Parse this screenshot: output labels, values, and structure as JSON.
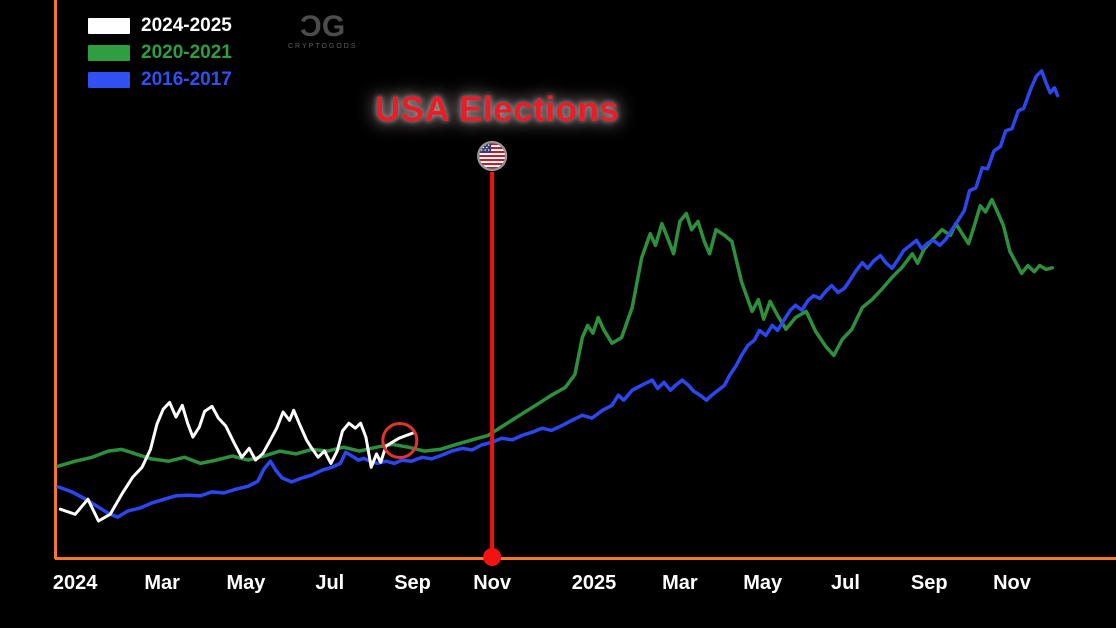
{
  "logo": {
    "mark_left": "C",
    "mark_right": "G",
    "subtext": "CRYPTOGODS"
  },
  "legend": {
    "items": [
      {
        "label": "2024-2025",
        "color": "#ffffff"
      },
      {
        "label": "2020-2021",
        "color": "#2f9e41"
      },
      {
        "label": "2016-2017",
        "color": "#3150f0"
      }
    ]
  },
  "chart_data": {
    "type": "line",
    "title": "USA Elections",
    "title_color": "#ea1c28",
    "background": "#000000",
    "axis_color": "#f4772e",
    "grid": false,
    "legend_position": "top-left",
    "y_axis": {
      "labels_visible": false,
      "unit": "relative price (axis unlabeled)"
    },
    "x_axis": {
      "ticks": [
        {
          "label": "2024",
          "x": 0.019
        },
        {
          "label": "Mar",
          "x": 0.101
        },
        {
          "label": "May",
          "x": 0.18
        },
        {
          "label": "Jul",
          "x": 0.259
        },
        {
          "label": "Sep",
          "x": 0.337
        },
        {
          "label": "Nov",
          "x": 0.412
        },
        {
          "label": "2025",
          "x": 0.508
        },
        {
          "label": "Mar",
          "x": 0.589
        },
        {
          "label": "May",
          "x": 0.667
        },
        {
          "label": "Jul",
          "x": 0.745
        },
        {
          "label": "Sep",
          "x": 0.824
        },
        {
          "label": "Nov",
          "x": 0.902
        }
      ]
    },
    "election_marker": {
      "label": "USA Elections",
      "x": 0.412,
      "color": "#f31212",
      "flag": "usa-flag-icon"
    },
    "highlight_circle": {
      "x": 0.325,
      "y": 0.212,
      "radius": 17,
      "color": "#e23333"
    },
    "series": [
      {
        "name": "2020-2021",
        "color": "#2e8f3d",
        "width": 3.5,
        "points": [
          [
            0.003,
            0.166
          ],
          [
            0.019,
            0.175
          ],
          [
            0.035,
            0.182
          ],
          [
            0.05,
            0.193
          ],
          [
            0.063,
            0.196
          ],
          [
            0.076,
            0.188
          ],
          [
            0.091,
            0.179
          ],
          [
            0.107,
            0.175
          ],
          [
            0.122,
            0.182
          ],
          [
            0.137,
            0.171
          ],
          [
            0.152,
            0.177
          ],
          [
            0.167,
            0.184
          ],
          [
            0.182,
            0.177
          ],
          [
            0.197,
            0.184
          ],
          [
            0.212,
            0.193
          ],
          [
            0.227,
            0.188
          ],
          [
            0.242,
            0.196
          ],
          [
            0.257,
            0.193
          ],
          [
            0.272,
            0.2
          ],
          [
            0.287,
            0.193
          ],
          [
            0.303,
            0.2
          ],
          [
            0.318,
            0.205
          ],
          [
            0.333,
            0.2
          ],
          [
            0.348,
            0.193
          ],
          [
            0.363,
            0.196
          ],
          [
            0.378,
            0.205
          ],
          [
            0.393,
            0.213
          ],
          [
            0.408,
            0.221
          ],
          [
            0.423,
            0.239
          ],
          [
            0.438,
            0.257
          ],
          [
            0.453,
            0.275
          ],
          [
            0.468,
            0.293
          ],
          [
            0.481,
            0.307
          ],
          [
            0.49,
            0.33
          ],
          [
            0.497,
            0.396
          ],
          [
            0.502,
            0.418
          ],
          [
            0.507,
            0.404
          ],
          [
            0.512,
            0.432
          ],
          [
            0.517,
            0.411
          ],
          [
            0.525,
            0.386
          ],
          [
            0.534,
            0.396
          ],
          [
            0.544,
            0.45
          ],
          [
            0.553,
            0.539
          ],
          [
            0.561,
            0.582
          ],
          [
            0.566,
            0.561
          ],
          [
            0.572,
            0.6
          ],
          [
            0.578,
            0.571
          ],
          [
            0.583,
            0.546
          ],
          [
            0.589,
            0.604
          ],
          [
            0.595,
            0.618
          ],
          [
            0.6,
            0.589
          ],
          [
            0.606,
            0.604
          ],
          [
            0.612,
            0.568
          ],
          [
            0.617,
            0.546
          ],
          [
            0.623,
            0.589
          ],
          [
            0.631,
            0.579
          ],
          [
            0.638,
            0.568
          ],
          [
            0.647,
            0.496
          ],
          [
            0.657,
            0.443
          ],
          [
            0.663,
            0.464
          ],
          [
            0.668,
            0.429
          ],
          [
            0.674,
            0.461
          ],
          [
            0.681,
            0.436
          ],
          [
            0.689,
            0.411
          ],
          [
            0.698,
            0.432
          ],
          [
            0.708,
            0.443
          ],
          [
            0.717,
            0.407
          ],
          [
            0.727,
            0.379
          ],
          [
            0.734,
            0.364
          ],
          [
            0.742,
            0.393
          ],
          [
            0.751,
            0.411
          ],
          [
            0.761,
            0.45
          ],
          [
            0.77,
            0.464
          ],
          [
            0.779,
            0.482
          ],
          [
            0.789,
            0.504
          ],
          [
            0.798,
            0.521
          ],
          [
            0.808,
            0.546
          ],
          [
            0.813,
            0.529
          ],
          [
            0.819,
            0.554
          ],
          [
            0.827,
            0.571
          ],
          [
            0.836,
            0.589
          ],
          [
            0.844,
            0.579
          ],
          [
            0.849,
            0.6
          ],
          [
            0.855,
            0.582
          ],
          [
            0.861,
            0.564
          ],
          [
            0.866,
            0.593
          ],
          [
            0.872,
            0.632
          ],
          [
            0.877,
            0.621
          ],
          [
            0.883,
            0.643
          ],
          [
            0.889,
            0.618
          ],
          [
            0.894,
            0.596
          ],
          [
            0.9,
            0.55
          ],
          [
            0.906,
            0.529
          ],
          [
            0.911,
            0.511
          ],
          [
            0.917,
            0.525
          ],
          [
            0.923,
            0.514
          ],
          [
            0.928,
            0.525
          ],
          [
            0.934,
            0.518
          ],
          [
            0.94,
            0.521
          ]
        ]
      },
      {
        "name": "2016-2017",
        "color": "#2c47f0",
        "width": 3.5,
        "points": [
          [
            0.003,
            0.129
          ],
          [
            0.016,
            0.12
          ],
          [
            0.027,
            0.109
          ],
          [
            0.039,
            0.095
          ],
          [
            0.05,
            0.082
          ],
          [
            0.059,
            0.075
          ],
          [
            0.069,
            0.086
          ],
          [
            0.08,
            0.091
          ],
          [
            0.091,
            0.1
          ],
          [
            0.103,
            0.107
          ],
          [
            0.114,
            0.113
          ],
          [
            0.125,
            0.114
          ],
          [
            0.137,
            0.113
          ],
          [
            0.148,
            0.12
          ],
          [
            0.159,
            0.118
          ],
          [
            0.171,
            0.125
          ],
          [
            0.182,
            0.13
          ],
          [
            0.191,
            0.139
          ],
          [
            0.197,
            0.161
          ],
          [
            0.203,
            0.175
          ],
          [
            0.208,
            0.159
          ],
          [
            0.214,
            0.145
          ],
          [
            0.223,
            0.138
          ],
          [
            0.233,
            0.145
          ],
          [
            0.242,
            0.15
          ],
          [
            0.252,
            0.159
          ],
          [
            0.261,
            0.164
          ],
          [
            0.269,
            0.171
          ],
          [
            0.274,
            0.191
          ],
          [
            0.28,
            0.184
          ],
          [
            0.286,
            0.177
          ],
          [
            0.291,
            0.18
          ],
          [
            0.297,
            0.175
          ],
          [
            0.304,
            0.171
          ],
          [
            0.312,
            0.175
          ],
          [
            0.32,
            0.171
          ],
          [
            0.327,
            0.177
          ],
          [
            0.336,
            0.175
          ],
          [
            0.346,
            0.182
          ],
          [
            0.355,
            0.179
          ],
          [
            0.365,
            0.186
          ],
          [
            0.374,
            0.193
          ],
          [
            0.384,
            0.198
          ],
          [
            0.393,
            0.195
          ],
          [
            0.402,
            0.204
          ],
          [
            0.412,
            0.209
          ],
          [
            0.421,
            0.216
          ],
          [
            0.431,
            0.213
          ],
          [
            0.44,
            0.221
          ],
          [
            0.45,
            0.227
          ],
          [
            0.459,
            0.234
          ],
          [
            0.468,
            0.23
          ],
          [
            0.478,
            0.239
          ],
          [
            0.487,
            0.248
          ],
          [
            0.497,
            0.257
          ],
          [
            0.506,
            0.252
          ],
          [
            0.516,
            0.266
          ],
          [
            0.525,
            0.275
          ],
          [
            0.531,
            0.293
          ],
          [
            0.536,
            0.284
          ],
          [
            0.544,
            0.302
          ],
          [
            0.553,
            0.311
          ],
          [
            0.563,
            0.32
          ],
          [
            0.568,
            0.305
          ],
          [
            0.574,
            0.316
          ],
          [
            0.58,
            0.302
          ],
          [
            0.585,
            0.311
          ],
          [
            0.591,
            0.32
          ],
          [
            0.597,
            0.311
          ],
          [
            0.602,
            0.3
          ],
          [
            0.608,
            0.293
          ],
          [
            0.614,
            0.284
          ],
          [
            0.619,
            0.293
          ],
          [
            0.625,
            0.302
          ],
          [
            0.631,
            0.311
          ],
          [
            0.636,
            0.329
          ],
          [
            0.642,
            0.346
          ],
          [
            0.647,
            0.364
          ],
          [
            0.653,
            0.382
          ],
          [
            0.659,
            0.391
          ],
          [
            0.664,
            0.409
          ],
          [
            0.67,
            0.4
          ],
          [
            0.676,
            0.418
          ],
          [
            0.681,
            0.409
          ],
          [
            0.687,
            0.427
          ],
          [
            0.693,
            0.445
          ],
          [
            0.698,
            0.454
          ],
          [
            0.704,
            0.445
          ],
          [
            0.71,
            0.463
          ],
          [
            0.715,
            0.471
          ],
          [
            0.721,
            0.466
          ],
          [
            0.727,
            0.48
          ],
          [
            0.732,
            0.489
          ],
          [
            0.738,
            0.477
          ],
          [
            0.744,
            0.484
          ],
          [
            0.749,
            0.498
          ],
          [
            0.755,
            0.516
          ],
          [
            0.761,
            0.53
          ],
          [
            0.766,
            0.52
          ],
          [
            0.772,
            0.534
          ],
          [
            0.778,
            0.543
          ],
          [
            0.783,
            0.53
          ],
          [
            0.789,
            0.52
          ],
          [
            0.794,
            0.534
          ],
          [
            0.8,
            0.552
          ],
          [
            0.806,
            0.561
          ],
          [
            0.812,
            0.57
          ],
          [
            0.817,
            0.555
          ],
          [
            0.823,
            0.566
          ],
          [
            0.828,
            0.57
          ],
          [
            0.834,
            0.561
          ],
          [
            0.84,
            0.573
          ],
          [
            0.845,
            0.588
          ],
          [
            0.851,
            0.605
          ],
          [
            0.857,
            0.623
          ],
          [
            0.862,
            0.659
          ],
          [
            0.868,
            0.664
          ],
          [
            0.874,
            0.7
          ],
          [
            0.879,
            0.698
          ],
          [
            0.885,
            0.73
          ],
          [
            0.891,
            0.738
          ],
          [
            0.896,
            0.766
          ],
          [
            0.902,
            0.77
          ],
          [
            0.908,
            0.802
          ],
          [
            0.913,
            0.806
          ],
          [
            0.919,
            0.838
          ],
          [
            0.925,
            0.864
          ],
          [
            0.93,
            0.873
          ],
          [
            0.934,
            0.852
          ],
          [
            0.938,
            0.834
          ],
          [
            0.942,
            0.843
          ],
          [
            0.945,
            0.829
          ]
        ]
      },
      {
        "name": "2024-2025",
        "color": "#ffffff",
        "width": 3,
        "points": [
          [
            0.005,
            0.089
          ],
          [
            0.019,
            0.08
          ],
          [
            0.031,
            0.107
          ],
          [
            0.041,
            0.068
          ],
          [
            0.052,
            0.08
          ],
          [
            0.063,
            0.116
          ],
          [
            0.073,
            0.146
          ],
          [
            0.082,
            0.164
          ],
          [
            0.09,
            0.196
          ],
          [
            0.096,
            0.241
          ],
          [
            0.102,
            0.268
          ],
          [
            0.108,
            0.28
          ],
          [
            0.114,
            0.254
          ],
          [
            0.12,
            0.275
          ],
          [
            0.125,
            0.243
          ],
          [
            0.13,
            0.218
          ],
          [
            0.136,
            0.236
          ],
          [
            0.141,
            0.264
          ],
          [
            0.148,
            0.273
          ],
          [
            0.154,
            0.252
          ],
          [
            0.161,
            0.238
          ],
          [
            0.169,
            0.207
          ],
          [
            0.176,
            0.182
          ],
          [
            0.183,
            0.198
          ],
          [
            0.189,
            0.177
          ],
          [
            0.196,
            0.189
          ],
          [
            0.203,
            0.213
          ],
          [
            0.209,
            0.234
          ],
          [
            0.215,
            0.263
          ],
          [
            0.221,
            0.248
          ],
          [
            0.225,
            0.266
          ],
          [
            0.231,
            0.239
          ],
          [
            0.237,
            0.213
          ],
          [
            0.242,
            0.198
          ],
          [
            0.248,
            0.182
          ],
          [
            0.254,
            0.193
          ],
          [
            0.26,
            0.171
          ],
          [
            0.266,
            0.193
          ],
          [
            0.271,
            0.229
          ],
          [
            0.277,
            0.243
          ],
          [
            0.283,
            0.234
          ],
          [
            0.288,
            0.243
          ],
          [
            0.293,
            0.218
          ],
          [
            0.298,
            0.164
          ],
          [
            0.303,
            0.188
          ],
          [
            0.307,
            0.173
          ],
          [
            0.312,
            0.202
          ],
          [
            0.318,
            0.209
          ],
          [
            0.324,
            0.216
          ],
          [
            0.331,
            0.221
          ],
          [
            0.337,
            0.225
          ]
        ]
      }
    ]
  }
}
